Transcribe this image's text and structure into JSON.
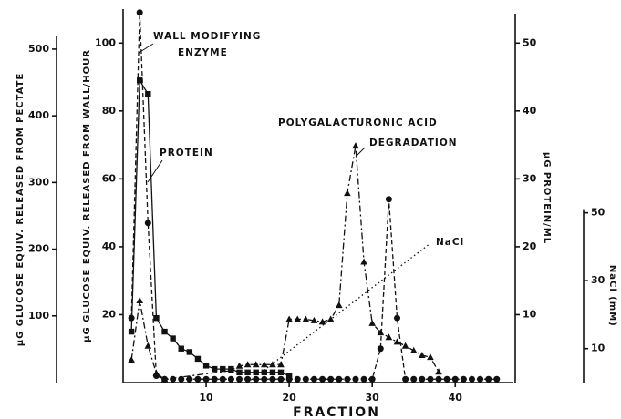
{
  "chart_data": {
    "type": "line",
    "xlabel": "FRACTION",
    "xlim": [
      0,
      47
    ],
    "xticks": [
      10,
      20,
      30,
      40
    ],
    "ylabel": "µG GLUCOSE EQUIV. RELEASED FROM WALL/HOUR",
    "ylim": [
      0,
      110
    ],
    "yticks": [
      20,
      40,
      60,
      80,
      100
    ],
    "y2label": "µG PROTEIN/ML",
    "y2lim": [
      0,
      55
    ],
    "y2ticks": [
      10,
      20,
      30,
      40,
      50
    ],
    "y3label": "µG GLUCOSE EQUIV. RELEASED FROM PECTATE",
    "y3lim": [
      0,
      560
    ],
    "y3ticks": [
      100,
      200,
      300,
      400,
      500
    ],
    "y4label": "NaCl (mM)",
    "y4lim": [
      0,
      110
    ],
    "y4ticks": [
      10,
      30,
      50
    ],
    "annotations": {
      "enzyme": [
        "WALL MODIFYING",
        "ENZYME"
      ],
      "protein": "PROTEIN",
      "degradation": [
        "POLYGALACTURONIC ACID",
        "DEGRADATION"
      ],
      "nacl": "NaCl"
    },
    "series": [
      {
        "axis": "y",
        "marker": "circle",
        "dash": "5 3",
        "color": "#111",
        "x": [
          1,
          2,
          3,
          4,
          5,
          6,
          7,
          8,
          9,
          10,
          11,
          12,
          13,
          14,
          15,
          16,
          17,
          18,
          19,
          20,
          21,
          22,
          23,
          24,
          25,
          26,
          27,
          28,
          29,
          30,
          31,
          32,
          33,
          34,
          35,
          36,
          37,
          38,
          39,
          40,
          41,
          42,
          43,
          44,
          45
        ],
        "values": [
          19,
          109,
          47,
          2,
          1,
          1,
          1,
          1,
          1,
          1,
          1,
          1,
          1,
          1,
          1,
          1,
          1,
          1,
          1,
          1,
          1,
          1,
          1,
          1,
          1,
          1,
          1,
          1,
          1,
          1,
          10,
          54,
          19,
          1,
          1,
          1,
          1,
          1,
          1,
          1,
          1,
          1,
          1,
          1,
          1
        ]
      },
      {
        "axis": "y2",
        "marker": "square",
        "dash": "",
        "color": "#111",
        "x": [
          1,
          2,
          3,
          4,
          5,
          6,
          7,
          8,
          9,
          10,
          11,
          12,
          13,
          14,
          15,
          16,
          17,
          18,
          19,
          20
        ],
        "values": [
          7.5,
          44.5,
          42.5,
          9.5,
          7.5,
          6.5,
          5,
          4.5,
          3.5,
          2.5,
          2,
          2,
          2,
          1.5,
          1.5,
          1.5,
          1.5,
          1.5,
          1.5,
          1
        ]
      },
      {
        "axis": "y3",
        "marker": "triangle",
        "dash": "7 3 2 3",
        "color": "#111",
        "x": [
          1,
          2,
          3,
          4,
          5,
          13,
          14,
          15,
          16,
          17,
          18,
          19,
          20,
          21,
          22,
          23,
          24,
          25,
          26,
          27,
          28,
          29,
          30,
          31,
          32,
          33,
          34,
          35,
          36,
          37,
          38
        ],
        "values": [
          34,
          123,
          55,
          14,
          5,
          18,
          25,
          27,
          27,
          27,
          27,
          27,
          95,
          95,
          95,
          93,
          91,
          95,
          116,
          284,
          355,
          181,
          89,
          75,
          68,
          61,
          55,
          48,
          41,
          38,
          16
        ]
      },
      {
        "axis": "y4",
        "marker": "none",
        "dash": "1.5 3",
        "color": "#111",
        "x": [
          15,
          37
        ],
        "values": [
          0,
          41
        ]
      }
    ]
  }
}
